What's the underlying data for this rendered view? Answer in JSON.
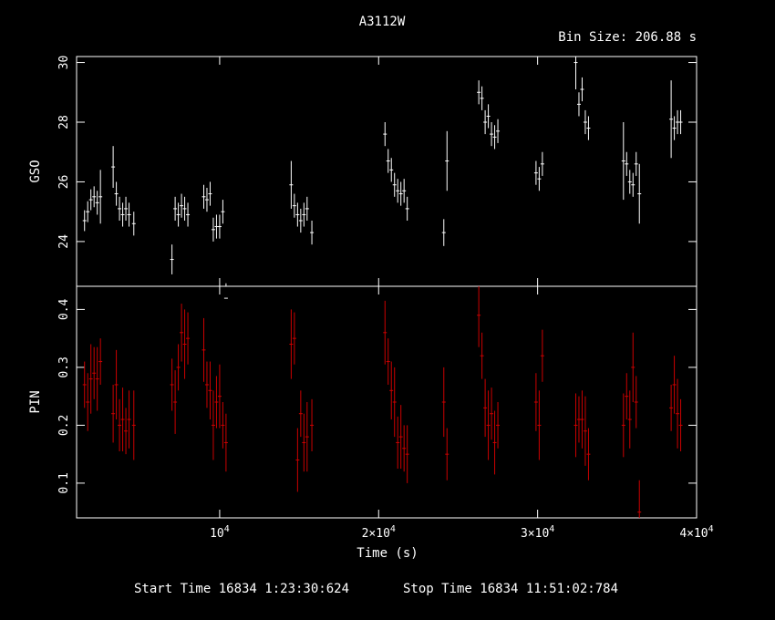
{
  "chart_data": {
    "type": "scatter",
    "title": "A3112W",
    "subtitle": "Bin Size: 206.88 s",
    "xlabel": "Time (s)",
    "xlim": [
      1000,
      40000
    ],
    "footer": {
      "start_label": "Start Time 16834  1:23:30:624",
      "stop_label": "Stop Time 16834 11:51:02:784"
    },
    "x_ticks": [
      {
        "value": 10000,
        "base": "10",
        "exp": "4"
      },
      {
        "value": 20000,
        "base": "2×10",
        "exp": "4"
      },
      {
        "value": 30000,
        "base": "3×10",
        "exp": "4"
      },
      {
        "value": 40000,
        "base": "4×10",
        "exp": "4"
      }
    ],
    "panels": [
      {
        "name": "GSO",
        "ylabel": "GSO",
        "ylim": [
          22.5,
          30.2
        ],
        "yticks": [
          24,
          26,
          28,
          30
        ],
        "color": "#ffffff",
        "x": [
          1500,
          1700,
          1900,
          2100,
          2300,
          2500,
          3300,
          3500,
          3700,
          3900,
          4100,
          4300,
          4600,
          7000,
          7200,
          7400,
          7600,
          7800,
          8000,
          9000,
          9200,
          9400,
          9600,
          9800,
          10000,
          10200,
          10400,
          14500,
          14700,
          14900,
          15100,
          15300,
          15500,
          15800,
          20400,
          20600,
          20800,
          21000,
          21200,
          21400,
          21600,
          21800,
          24100,
          24300,
          26300,
          26500,
          26700,
          26900,
          27100,
          27300,
          27500,
          29900,
          30100,
          30300,
          32400,
          32600,
          32800,
          33000,
          33200,
          35400,
          35600,
          35800,
          36000,
          36200,
          36400,
          38400,
          38600,
          38800,
          39000
        ],
        "y": [
          24.7,
          25.0,
          25.4,
          25.5,
          25.3,
          25.5,
          26.5,
          25.6,
          25.1,
          24.9,
          25.1,
          24.9,
          24.6,
          23.4,
          25.1,
          24.9,
          25.2,
          25.1,
          24.9,
          25.5,
          25.4,
          25.6,
          24.4,
          24.5,
          24.5,
          25.0,
          22.1,
          25.9,
          25.2,
          24.9,
          24.7,
          24.9,
          25.1,
          24.3,
          27.6,
          26.7,
          26.4,
          25.9,
          25.7,
          25.6,
          25.7,
          25.1,
          24.3,
          26.7,
          29.0,
          28.8,
          28.0,
          28.2,
          27.6,
          27.5,
          27.7,
          26.3,
          26.1,
          26.6,
          30.0,
          28.6,
          29.1,
          28.0,
          27.8,
          26.7,
          26.6,
          26.0,
          25.9,
          26.6,
          25.6,
          28.1,
          27.8,
          28.0,
          28.0
        ],
        "yerr": [
          0.35,
          0.35,
          0.35,
          0.35,
          0.4,
          0.9,
          0.7,
          0.4,
          0.4,
          0.4,
          0.4,
          0.4,
          0.4,
          0.5,
          0.4,
          0.4,
          0.4,
          0.4,
          0.4,
          0.4,
          0.4,
          0.4,
          0.4,
          0.4,
          0.4,
          0.4,
          0.5,
          0.8,
          0.4,
          0.4,
          0.4,
          0.4,
          0.4,
          0.4,
          0.4,
          0.4,
          0.4,
          0.4,
          0.4,
          0.4,
          0.4,
          0.4,
          0.45,
          1.0,
          0.4,
          0.4,
          0.4,
          0.4,
          0.4,
          0.4,
          0.4,
          0.4,
          0.4,
          0.4,
          0.9,
          0.4,
          0.4,
          0.4,
          0.4,
          1.3,
          0.4,
          0.4,
          0.4,
          0.4,
          1.0,
          1.3,
          0.4,
          0.4,
          0.4
        ]
      },
      {
        "name": "PIN",
        "ylabel": "PIN",
        "ylim": [
          0.04,
          0.44
        ],
        "yticks": [
          0.1,
          0.2,
          0.3,
          0.4
        ],
        "color": "#cc0000",
        "x": [
          1500,
          1700,
          1900,
          2100,
          2300,
          2500,
          3300,
          3500,
          3700,
          3900,
          4100,
          4300,
          4600,
          7000,
          7200,
          7400,
          7600,
          7800,
          8000,
          9000,
          9200,
          9400,
          9600,
          9800,
          10000,
          10200,
          10400,
          14500,
          14700,
          14900,
          15100,
          15300,
          15500,
          15800,
          20400,
          20600,
          20800,
          21000,
          21200,
          21400,
          21600,
          21800,
          24100,
          24300,
          26300,
          26500,
          26700,
          26900,
          27100,
          27300,
          27500,
          29900,
          30100,
          30300,
          32400,
          32600,
          32800,
          33000,
          33200,
          35400,
          35600,
          35800,
          36000,
          36200,
          36400,
          38400,
          38600,
          38800,
          39000
        ],
        "y": [
          0.27,
          0.24,
          0.28,
          0.29,
          0.28,
          0.31,
          0.22,
          0.27,
          0.2,
          0.21,
          0.19,
          0.21,
          0.2,
          0.27,
          0.24,
          0.3,
          0.36,
          0.34,
          0.35,
          0.33,
          0.27,
          0.26,
          0.2,
          0.24,
          0.25,
          0.2,
          0.17,
          0.34,
          0.35,
          0.14,
          0.22,
          0.17,
          0.18,
          0.2,
          0.36,
          0.31,
          0.26,
          0.24,
          0.17,
          0.18,
          0.16,
          0.15,
          0.24,
          0.15,
          0.39,
          0.32,
          0.23,
          0.2,
          0.22,
          0.17,
          0.2,
          0.24,
          0.2,
          0.32,
          0.2,
          0.21,
          0.21,
          0.19,
          0.15,
          0.2,
          0.25,
          0.21,
          0.3,
          0.24,
          0.05,
          0.23,
          0.27,
          0.22,
          0.2
        ]
      }
    ]
  }
}
